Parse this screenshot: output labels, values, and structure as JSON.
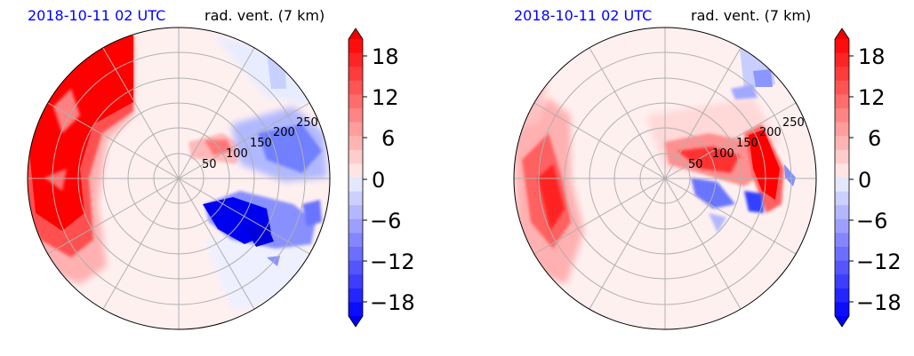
{
  "chart_data": [
    {
      "type": "contour",
      "projection": "polar",
      "title_time": "2018-10-11 02 UTC",
      "title_field": "rad. vent. (7 km)",
      "radial_ticks": [
        "50",
        "100",
        "150",
        "200",
        "250"
      ],
      "colorbar": {
        "ticks": [
          "18",
          "12",
          "6",
          "0",
          "−6",
          "−12",
          "−18"
        ],
        "range": [
          -20,
          20
        ],
        "extend": "both"
      },
      "colors": {
        "positive": "#ff0000",
        "negative": "#0000ff",
        "neutral": "#fff0f0"
      }
    },
    {
      "type": "contour",
      "projection": "polar",
      "title_time": "2018-10-11 02 UTC",
      "title_field": "rad. vent. (7 km)",
      "radial_ticks": [
        "50",
        "100",
        "150",
        "200",
        "250"
      ],
      "colorbar": {
        "ticks": [
          "18",
          "12",
          "6",
          "0",
          "−6",
          "−12",
          "−18"
        ],
        "range": [
          -20,
          20
        ],
        "extend": "both"
      },
      "colors": {
        "positive": "#ff0000",
        "negative": "#0000ff",
        "neutral": "#fff0f0"
      }
    }
  ]
}
